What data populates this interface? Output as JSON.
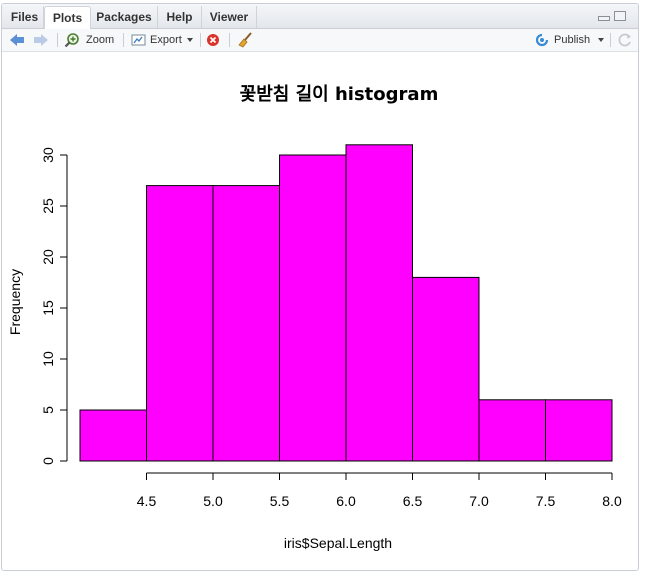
{
  "tabs": [
    {
      "label": "Files"
    },
    {
      "label": "Plots"
    },
    {
      "label": "Packages"
    },
    {
      "label": "Help"
    },
    {
      "label": "Viewer"
    }
  ],
  "toolbar": {
    "zoom_label": "Zoom",
    "export_label": "Export",
    "publish_label": "Publish"
  },
  "colors": {
    "bar_fill": "#ff00ff",
    "bar_stroke": "#000000"
  },
  "chart_data": {
    "type": "bar",
    "title": "꽃받침 길이 histogram",
    "xlabel": "iris$Sepal.Length",
    "ylabel": "Frequency",
    "bins": [
      {
        "from": 4.0,
        "to": 4.5,
        "count": 5
      },
      {
        "from": 4.5,
        "to": 5.0,
        "count": 27
      },
      {
        "from": 5.0,
        "to": 5.5,
        "count": 27
      },
      {
        "from": 5.5,
        "to": 6.0,
        "count": 30
      },
      {
        "from": 6.0,
        "to": 6.5,
        "count": 31
      },
      {
        "from": 6.5,
        "to": 7.0,
        "count": 18
      },
      {
        "from": 7.0,
        "to": 7.5,
        "count": 6
      },
      {
        "from": 7.5,
        "to": 8.0,
        "count": 6
      }
    ],
    "x_ticks": [
      "4.5",
      "5.0",
      "5.5",
      "6.0",
      "6.5",
      "7.0",
      "7.5",
      "8.0"
    ],
    "y_ticks": [
      "0",
      "5",
      "10",
      "15",
      "20",
      "25",
      "30"
    ],
    "xlim": [
      4.0,
      8.0
    ],
    "ylim": [
      0,
      31
    ],
    "grid": false
  }
}
